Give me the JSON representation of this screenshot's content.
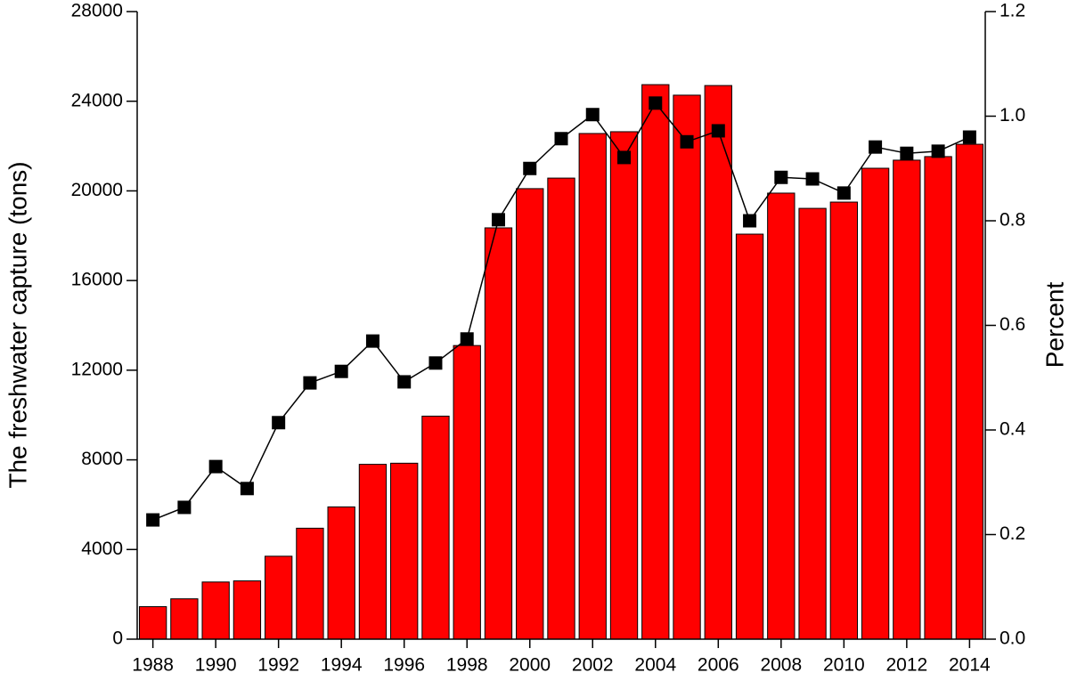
{
  "chart_data": {
    "type": "bar",
    "y_label": "The freshwater capture (tons)",
    "y2_label": "Percent",
    "x": [
      1988,
      1989,
      1990,
      1991,
      1992,
      1993,
      1994,
      1995,
      1996,
      1997,
      1998,
      1999,
      2000,
      2001,
      2002,
      2003,
      2004,
      2005,
      2006,
      2007,
      2008,
      2009,
      2010,
      2011,
      2012,
      2013,
      2014
    ],
    "series": [
      {
        "type": "bar",
        "color": "#ff0000",
        "values": [
          1450,
          1800,
          2550,
          2600,
          3700,
          4950,
          5900,
          7800,
          7850,
          9950,
          13100,
          18350,
          20100,
          20570,
          22560,
          22640,
          24740,
          24270,
          24700,
          18070,
          19900,
          19220,
          19500,
          21010,
          21370,
          21530,
          22080
        ]
      },
      {
        "type": "line",
        "axis": "y2",
        "color": "#000000",
        "values": [
          0.228,
          0.252,
          0.33,
          0.288,
          0.414,
          0.49,
          0.512,
          0.57,
          0.492,
          0.528,
          0.574,
          0.802,
          0.9,
          0.957,
          1.003,
          0.921,
          1.025,
          0.951,
          0.972,
          0.8,
          0.883,
          0.88,
          0.853,
          0.941,
          0.929,
          0.933,
          0.96
        ]
      }
    ],
    "xlim": [
      1987.5,
      2014.5
    ],
    "xticks": [
      1988,
      1990,
      1992,
      1994,
      1996,
      1998,
      2000,
      2002,
      2004,
      2006,
      2008,
      2010,
      2012,
      2014
    ],
    "ylim": [
      0,
      28000
    ],
    "yticks": [
      0,
      4000,
      8000,
      12000,
      16000,
      20000,
      24000,
      28000
    ],
    "y2lim": [
      0,
      1.2
    ],
    "y2ticks": [
      {
        "value": 0,
        "label": "0.0"
      },
      0.2,
      0.4,
      0.6,
      0.8,
      {
        "value": 1,
        "label": "1.0"
      },
      1.2
    ]
  }
}
